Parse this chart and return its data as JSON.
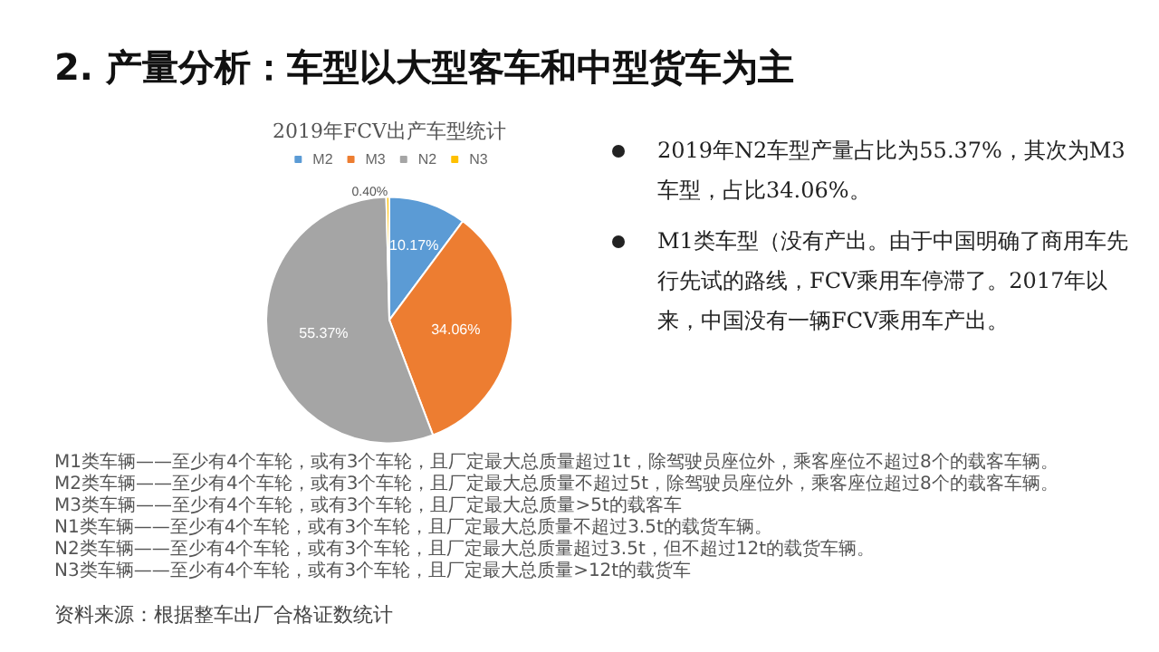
{
  "chart_data": {
    "type": "pie",
    "title": "2. 产量分析：车型以大型客车和中型货车为主",
    "subtitle": "2019年FCV出产车型统计",
    "categories": [
      "M2",
      "M3",
      "N2",
      "N3"
    ],
    "values": [
      10.17,
      34.06,
      55.37,
      0.4
    ],
    "colors": [
      "#5b9bd5",
      "#ed7d31",
      "#a5a5a5",
      "#ffc000"
    ],
    "value_labels": [
      "10.17%",
      "34.06%",
      "55.37%",
      "0.40%"
    ],
    "legend": "top",
    "annotations": [
      "2019年N2车型产量占比为55.37%，其次为M3车型，占比34.06%。",
      "M1类车型（没有产出。由于中国明确了商用车先行先试的路线，FCV乘用车停滞了。2017年以来，中国没有一辆FCV乘用车产出。",
      "M1类车辆——至少有4个车轮，或有3个车轮，且厂定最大总质量超过1t，除驾驶员座位外，乘客座位不超过8个的载客车辆。",
      "M2类车辆——至少有4个车轮，或有3个车轮，且厂定最大总质量不超过5t，除驾驶员座位外，乘客座位超过8个的载客车辆。",
      "M3类车辆——至少有4个车轮，或有3个车轮，且厂定最大总质量>5t的载客车",
      "N1类车辆——至少有4个车轮，或有3个车轮，且厂定最大总质量不超过3.5t的载货车辆。",
      "N2类车辆——至少有4个车轮，或有3个车轮，且厂定最大总质量超过3.5t，但不超过12t的载货车辆。",
      "N3类车辆——至少有4个车轮，或有3个车轮，且厂定最大总质量>12t的载货车",
      "资料来源：根据整车出厂合格证数统计"
    ]
  }
}
